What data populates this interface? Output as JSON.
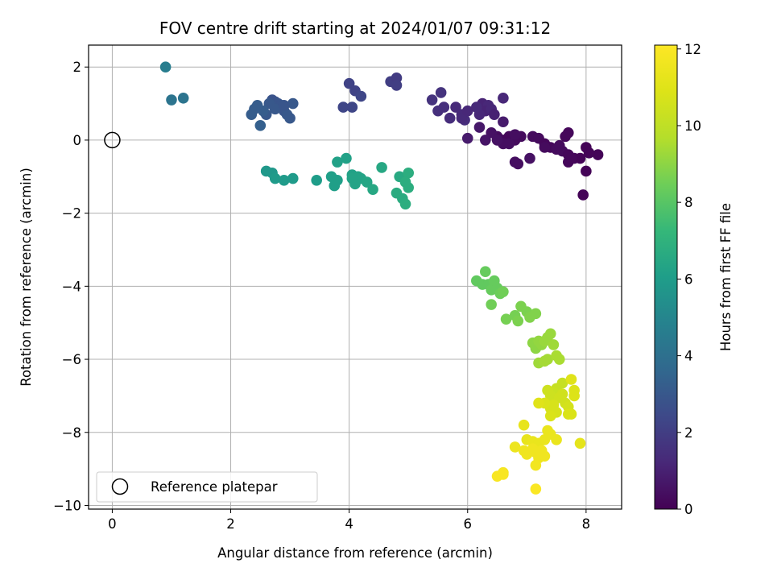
{
  "chart_data": {
    "type": "scatter",
    "title": "FOV centre drift starting at 2024/01/07 09:31:12",
    "xlabel": "Angular distance from reference (arcmin)",
    "ylabel": "Rotation from reference (arcmin)",
    "xlim": [
      -0.4,
      8.6
    ],
    "ylim": [
      -10.1,
      2.6
    ],
    "xticks": [
      0,
      2,
      4,
      6,
      8
    ],
    "yticks": [
      2,
      0,
      -2,
      -4,
      -6,
      -8,
      -10
    ],
    "xtick_labels": [
      "0",
      "2",
      "4",
      "6",
      "8"
    ],
    "ytick_labels": [
      "2",
      "0",
      "−2",
      "−4",
      "−6",
      "−8",
      "−10"
    ],
    "grid": true,
    "colormap": "viridis",
    "colorbar": {
      "label": "Hours from first FF file",
      "range": [
        0,
        12.1
      ],
      "ticks": [
        0,
        2,
        4,
        6,
        8,
        10,
        12
      ],
      "tick_labels": [
        "0",
        "2",
        "4",
        "6",
        "8",
        "10",
        "12"
      ]
    },
    "reference": {
      "x": 0,
      "y": 0,
      "label": "Reference platepar"
    },
    "legend": {
      "location": "lower-left",
      "entries": [
        "Reference platepar"
      ]
    },
    "points": [
      [
        6.6,
        0.0,
        0.2
      ],
      [
        6.7,
        0.1,
        0.2
      ],
      [
        6.8,
        0.0,
        0.3
      ],
      [
        6.5,
        0.1,
        0.3
      ],
      [
        6.6,
        -0.1,
        0.4
      ],
      [
        6.9,
        0.1,
        0.3
      ],
      [
        6.7,
        -0.1,
        0.4
      ],
      [
        6.4,
        0.2,
        0.5
      ],
      [
        6.5,
        0.0,
        0.5
      ],
      [
        6.3,
        0.0,
        0.6
      ],
      [
        6.8,
        0.15,
        0.4
      ],
      [
        6.6,
        0.5,
        0.8
      ],
      [
        6.6,
        1.15,
        1.2
      ],
      [
        7.1,
        0.1,
        0.3
      ],
      [
        7.2,
        0.05,
        0.3
      ],
      [
        7.3,
        -0.1,
        0.2
      ],
      [
        7.4,
        -0.2,
        0.2
      ],
      [
        7.5,
        -0.25,
        0.3
      ],
      [
        7.6,
        -0.3,
        0.3
      ],
      [
        7.7,
        -0.4,
        0.2
      ],
      [
        7.65,
        0.1,
        0.2
      ],
      [
        7.7,
        0.2,
        0.2
      ],
      [
        7.8,
        -0.5,
        0.2
      ],
      [
        7.7,
        -0.6,
        0.2
      ],
      [
        7.9,
        -0.5,
        0.1
      ],
      [
        8.0,
        -0.2,
        0.1
      ],
      [
        8.05,
        -0.35,
        0.1
      ],
      [
        8.2,
        -0.4,
        0.1
      ],
      [
        8.0,
        -0.85,
        0.1
      ],
      [
        7.95,
        -1.5,
        0.1
      ],
      [
        7.3,
        -0.2,
        0.3
      ],
      [
        7.55,
        -0.15,
        0.3
      ],
      [
        7.75,
        -0.5,
        0.2
      ],
      [
        6.8,
        -0.6,
        0.4
      ],
      [
        6.85,
        -0.65,
        0.4
      ],
      [
        7.05,
        -0.5,
        0.5
      ],
      [
        6.2,
        0.35,
        0.7
      ],
      [
        6.0,
        0.05,
        0.8
      ],
      [
        6.25,
        1.0,
        1.1
      ],
      [
        6.35,
        0.95,
        1.2
      ],
      [
        6.3,
        0.8,
        1.1
      ],
      [
        6.4,
        0.85,
        1.2
      ],
      [
        6.2,
        0.7,
        1.2
      ],
      [
        6.15,
        0.9,
        1.3
      ],
      [
        6.45,
        0.7,
        1.0
      ],
      [
        5.8,
        0.9,
        1.3
      ],
      [
        5.9,
        0.7,
        1.3
      ],
      [
        5.95,
        0.55,
        1.4
      ],
      [
        5.7,
        0.6,
        1.4
      ],
      [
        5.6,
        0.9,
        1.5
      ],
      [
        5.5,
        0.8,
        1.5
      ],
      [
        5.4,
        1.1,
        1.6
      ],
      [
        5.55,
        1.3,
        1.6
      ],
      [
        5.9,
        0.6,
        1.3
      ],
      [
        6.0,
        0.8,
        1.2
      ],
      [
        4.7,
        1.6,
        2.0
      ],
      [
        4.8,
        1.7,
        1.9
      ],
      [
        4.8,
        1.5,
        2.0
      ],
      [
        4.0,
        1.55,
        2.2
      ],
      [
        4.1,
        1.35,
        2.2
      ],
      [
        4.2,
        1.2,
        2.3
      ],
      [
        4.05,
        0.9,
        2.3
      ],
      [
        3.9,
        0.9,
        2.3
      ],
      [
        2.7,
        1.1,
        2.8
      ],
      [
        2.75,
        1.05,
        2.8
      ],
      [
        2.8,
        1.0,
        2.9
      ],
      [
        2.85,
        0.95,
        2.9
      ],
      [
        2.9,
        0.8,
        2.9
      ],
      [
        2.95,
        0.7,
        3.0
      ],
      [
        3.0,
        0.6,
        3.0
      ],
      [
        3.05,
        1.0,
        3.0
      ],
      [
        2.6,
        0.7,
        3.0
      ],
      [
        2.65,
        1.0,
        3.0
      ],
      [
        2.55,
        0.8,
        3.2
      ],
      [
        2.45,
        0.95,
        3.2
      ],
      [
        2.4,
        0.85,
        3.2
      ],
      [
        2.35,
        0.7,
        3.2
      ],
      [
        2.5,
        0.4,
        3.3
      ],
      [
        2.75,
        0.85,
        3.0
      ],
      [
        2.9,
        0.95,
        2.9
      ],
      [
        1.2,
        1.15,
        4.2
      ],
      [
        1.0,
        1.1,
        4.2
      ],
      [
        0.9,
        2.0,
        4.6
      ],
      [
        2.6,
        -0.85,
        5.8
      ],
      [
        2.7,
        -0.9,
        5.8
      ],
      [
        2.75,
        -1.05,
        5.9
      ],
      [
        2.9,
        -1.1,
        5.9
      ],
      [
        3.05,
        -1.05,
        5.9
      ],
      [
        3.45,
        -1.1,
        6.0
      ],
      [
        3.7,
        -1.0,
        6.1
      ],
      [
        3.75,
        -1.25,
        6.1
      ],
      [
        3.8,
        -1.1,
        6.1
      ],
      [
        3.95,
        -0.5,
        6.2
      ],
      [
        3.8,
        -0.6,
        6.2
      ],
      [
        4.05,
        -0.95,
        6.2
      ],
      [
        4.1,
        -1.2,
        6.3
      ],
      [
        4.15,
        -1.0,
        6.3
      ],
      [
        4.2,
        -1.05,
        6.3
      ],
      [
        4.05,
        -1.05,
        6.3
      ],
      [
        4.3,
        -1.15,
        6.4
      ],
      [
        4.4,
        -1.35,
        6.5
      ],
      [
        4.55,
        -0.75,
        6.5
      ],
      [
        4.85,
        -1.0,
        6.6
      ],
      [
        4.8,
        -1.45,
        6.7
      ],
      [
        4.9,
        -1.6,
        6.7
      ],
      [
        4.95,
        -1.75,
        6.8
      ],
      [
        5.0,
        -0.9,
        6.8
      ],
      [
        5.0,
        -1.3,
        6.8
      ],
      [
        4.95,
        -1.15,
        6.8
      ],
      [
        6.15,
        -3.85,
        8.2
      ],
      [
        6.25,
        -3.95,
        8.2
      ],
      [
        6.3,
        -3.6,
        8.3
      ],
      [
        6.35,
        -3.95,
        8.2
      ],
      [
        6.4,
        -4.1,
        8.3
      ],
      [
        6.45,
        -3.85,
        8.3
      ],
      [
        6.5,
        -4.05,
        8.3
      ],
      [
        6.55,
        -4.2,
        8.4
      ],
      [
        6.6,
        -4.15,
        8.5
      ],
      [
        6.4,
        -4.5,
        8.5
      ],
      [
        6.65,
        -4.9,
        8.6
      ],
      [
        6.8,
        -4.8,
        8.6
      ],
      [
        6.85,
        -4.95,
        8.7
      ],
      [
        6.9,
        -4.55,
        8.7
      ],
      [
        7.0,
        -4.7,
        8.7
      ],
      [
        7.05,
        -4.85,
        8.8
      ],
      [
        7.15,
        -4.75,
        8.8
      ],
      [
        7.1,
        -5.55,
        9.0
      ],
      [
        7.15,
        -5.7,
        9.0
      ],
      [
        7.2,
        -5.5,
        9.1
      ],
      [
        7.25,
        -5.6,
        9.1
      ],
      [
        7.3,
        -5.5,
        9.2
      ],
      [
        7.35,
        -5.4,
        9.2
      ],
      [
        7.4,
        -5.3,
        9.2
      ],
      [
        7.45,
        -5.6,
        9.3
      ],
      [
        7.2,
        -6.1,
        9.3
      ],
      [
        7.3,
        -6.05,
        9.4
      ],
      [
        7.35,
        -6.0,
        9.4
      ],
      [
        7.5,
        -5.9,
        9.5
      ],
      [
        7.55,
        -6.0,
        9.5
      ],
      [
        7.6,
        -6.65,
        10.2
      ],
      [
        7.5,
        -6.8,
        10.2
      ],
      [
        7.45,
        -6.9,
        10.3
      ],
      [
        7.4,
        -7.0,
        10.4
      ],
      [
        7.35,
        -6.85,
        10.4
      ],
      [
        7.55,
        -7.05,
        10.5
      ],
      [
        7.6,
        -6.95,
        10.5
      ],
      [
        7.65,
        -7.2,
        10.5
      ],
      [
        7.7,
        -7.3,
        10.6
      ],
      [
        7.45,
        -7.25,
        10.7
      ],
      [
        7.4,
        -7.35,
        10.7
      ],
      [
        7.5,
        -7.45,
        10.7
      ],
      [
        7.3,
        -7.2,
        10.8
      ],
      [
        7.7,
        -7.5,
        10.8
      ],
      [
        7.75,
        -7.5,
        10.8
      ],
      [
        7.4,
        -7.55,
        10.8
      ],
      [
        7.8,
        -6.85,
        10.9
      ],
      [
        7.75,
        -6.55,
        11.0
      ],
      [
        7.8,
        -7.0,
        10.9
      ],
      [
        7.2,
        -7.2,
        11.0
      ],
      [
        7.9,
        -8.3,
        11.2
      ],
      [
        6.95,
        -7.8,
        11.3
      ],
      [
        7.0,
        -8.2,
        11.3
      ],
      [
        7.1,
        -8.25,
        11.4
      ],
      [
        7.2,
        -8.3,
        11.4
      ],
      [
        7.3,
        -8.2,
        11.4
      ],
      [
        7.35,
        -7.95,
        11.4
      ],
      [
        7.4,
        -8.05,
        11.4
      ],
      [
        7.5,
        -8.2,
        11.4
      ],
      [
        6.8,
        -8.4,
        11.5
      ],
      [
        6.95,
        -8.5,
        11.6
      ],
      [
        7.0,
        -8.6,
        11.6
      ],
      [
        7.1,
        -8.45,
        11.6
      ],
      [
        7.15,
        -8.55,
        11.6
      ],
      [
        7.2,
        -8.7,
        11.6
      ],
      [
        7.25,
        -8.5,
        11.6
      ],
      [
        7.3,
        -8.65,
        11.6
      ],
      [
        7.15,
        -8.9,
        11.7
      ],
      [
        6.6,
        -9.1,
        11.8
      ],
      [
        6.5,
        -9.2,
        11.9
      ],
      [
        6.6,
        -9.15,
        11.9
      ],
      [
        7.15,
        -9.55,
        12.0
      ]
    ]
  }
}
